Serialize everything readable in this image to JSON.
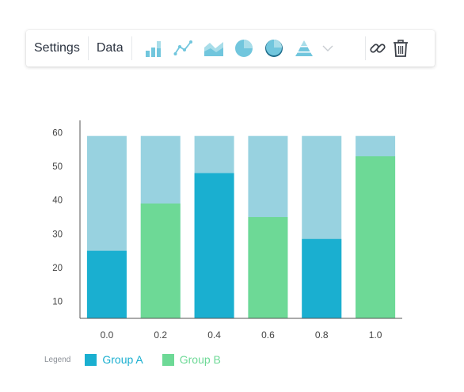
{
  "toolbar": {
    "settings_label": "Settings",
    "data_label": "Data",
    "icons": [
      "bar-chart-icon",
      "line-chart-icon",
      "area-chart-icon",
      "pie-chart-icon",
      "donut-chart-icon",
      "pyramid-chart-icon",
      "chevron-down-icon",
      "link-icon",
      "trash-icon"
    ]
  },
  "legend": {
    "title": "Legend",
    "items": [
      {
        "label": "Group A",
        "color": "#1aafd0"
      },
      {
        "label": "Group B",
        "color": "#6dd996"
      }
    ]
  },
  "colors": {
    "background_bar": "#98d2e0",
    "group_a": "#1aafd0",
    "group_b": "#6dd996",
    "icon_light": "#a8dde9",
    "icon_mid": "#71c6dd",
    "icon_dark": "#1c6b8a",
    "axis": "#555555"
  },
  "chart_data": {
    "type": "bar",
    "categories": [
      "0.0",
      "0.2",
      "0.4",
      "0.6",
      "0.8",
      "1.0"
    ],
    "series": [
      {
        "name": "Group A",
        "values": [
          25,
          null,
          48,
          null,
          28.5,
          null
        ]
      },
      {
        "name": "Group B",
        "values": [
          null,
          39,
          null,
          35,
          null,
          53
        ]
      }
    ],
    "background_max": 59,
    "yticks": [
      10,
      20,
      30,
      40,
      50,
      60
    ],
    "ylim": [
      5,
      60
    ]
  }
}
